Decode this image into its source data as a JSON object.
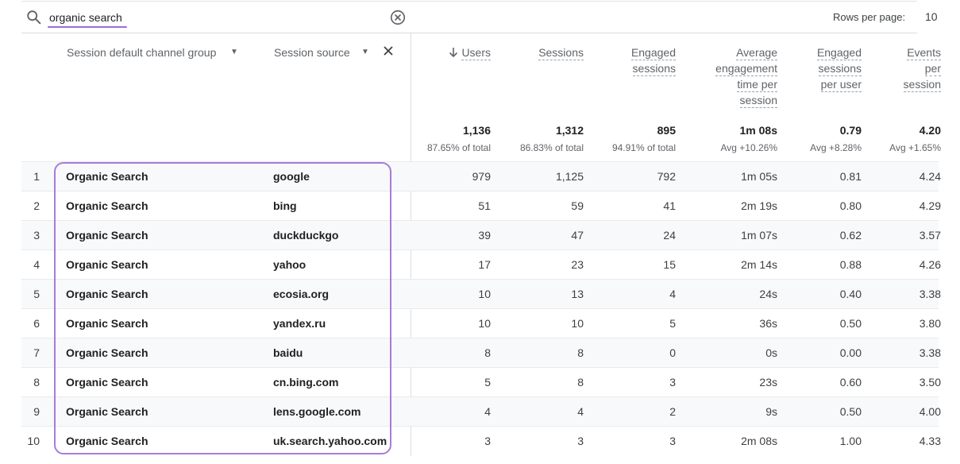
{
  "search": {
    "query": "organic search"
  },
  "pagination": {
    "rows_per_page_label": "Rows per page:",
    "rows_per_page_value": "10"
  },
  "dimensions": {
    "primary": "Session default channel group",
    "secondary": "Session source"
  },
  "metrics": [
    {
      "label_lines": [
        "Users"
      ],
      "total": "1,136",
      "subtotal": "87.65% of total",
      "sorted": true
    },
    {
      "label_lines": [
        "Sessions"
      ],
      "total": "1,312",
      "subtotal": "86.83% of total"
    },
    {
      "label_lines": [
        "Engaged",
        "sessions"
      ],
      "total": "895",
      "subtotal": "94.91% of total"
    },
    {
      "label_lines": [
        "Average",
        "engagement",
        "time per",
        "session"
      ],
      "total": "1m 08s",
      "subtotal": "Avg +10.26%"
    },
    {
      "label_lines": [
        "Engaged",
        "sessions",
        "per user"
      ],
      "total": "0.79",
      "subtotal": "Avg +8.28%"
    },
    {
      "label_lines": [
        "Events",
        "per",
        "session"
      ],
      "total": "4.20",
      "subtotal": "Avg +1.65%"
    }
  ],
  "rows": [
    {
      "index": "1",
      "channel": "Organic Search",
      "source": "google",
      "values": [
        "979",
        "1,125",
        "792",
        "1m 05s",
        "0.81",
        "4.24"
      ]
    },
    {
      "index": "2",
      "channel": "Organic Search",
      "source": "bing",
      "values": [
        "51",
        "59",
        "41",
        "2m 19s",
        "0.80",
        "4.29"
      ]
    },
    {
      "index": "3",
      "channel": "Organic Search",
      "source": "duckduckgo",
      "values": [
        "39",
        "47",
        "24",
        "1m 07s",
        "0.62",
        "3.57"
      ]
    },
    {
      "index": "4",
      "channel": "Organic Search",
      "source": "yahoo",
      "values": [
        "17",
        "23",
        "15",
        "2m 14s",
        "0.88",
        "4.26"
      ]
    },
    {
      "index": "5",
      "channel": "Organic Search",
      "source": "ecosia.org",
      "values": [
        "10",
        "13",
        "4",
        "24s",
        "0.40",
        "3.38"
      ]
    },
    {
      "index": "6",
      "channel": "Organic Search",
      "source": "yandex.ru",
      "values": [
        "10",
        "10",
        "5",
        "36s",
        "0.50",
        "3.80"
      ]
    },
    {
      "index": "7",
      "channel": "Organic Search",
      "source": "baidu",
      "values": [
        "8",
        "8",
        "0",
        "0s",
        "0.00",
        "3.38"
      ]
    },
    {
      "index": "8",
      "channel": "Organic Search",
      "source": "cn.bing.com",
      "values": [
        "5",
        "8",
        "3",
        "23s",
        "0.60",
        "3.50"
      ]
    },
    {
      "index": "9",
      "channel": "Organic Search",
      "source": "lens.google.com",
      "values": [
        "4",
        "4",
        "2",
        "9s",
        "0.50",
        "4.00"
      ]
    },
    {
      "index": "10",
      "channel": "Organic Search",
      "source": "uk.search.yahoo.com",
      "values": [
        "3",
        "3",
        "3",
        "2m 08s",
        "1.00",
        "4.33"
      ]
    }
  ],
  "colors": {
    "highlight": "#a67cdb",
    "search_underline": "#9b6dd6"
  }
}
